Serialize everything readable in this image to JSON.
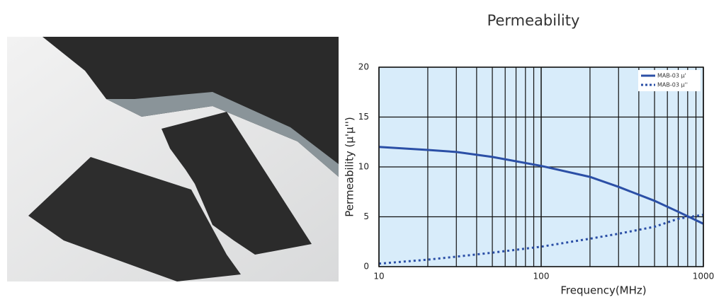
{
  "chart_data": {
    "type": "line",
    "title": "Permeability",
    "x_label": "Frequency(MHz)",
    "y_label": "Permeability (μ'μ'')",
    "log_x": true,
    "grid": true,
    "legend": "top-right",
    "xlim": [
      10,
      1000
    ],
    "xticks": [
      10,
      100,
      1000
    ],
    "xminor": [
      20,
      30,
      40,
      50,
      60,
      70,
      80,
      90,
      200,
      300,
      400,
      500,
      600,
      700,
      800,
      900
    ],
    "ylim": [
      0,
      20
    ],
    "yticks": [
      0,
      5,
      10,
      15,
      20
    ],
    "x": [
      10,
      20,
      30,
      50,
      100,
      200,
      300,
      500,
      700,
      1000
    ],
    "series": [
      {
        "name": "MAB-03 μ'",
        "color": "#2b4fa6",
        "style": "solid",
        "values": [
          12.0,
          11.7,
          11.5,
          11.0,
          10.1,
          9.0,
          8.0,
          6.6,
          5.5,
          4.3
        ]
      },
      {
        "name": "MAB-03 μ''",
        "color": "#2b4fa6",
        "style": "dotted",
        "values": [
          0.3,
          0.7,
          1.0,
          1.4,
          2.0,
          2.8,
          3.3,
          4.0,
          4.8,
          5.2
        ]
      }
    ]
  }
}
